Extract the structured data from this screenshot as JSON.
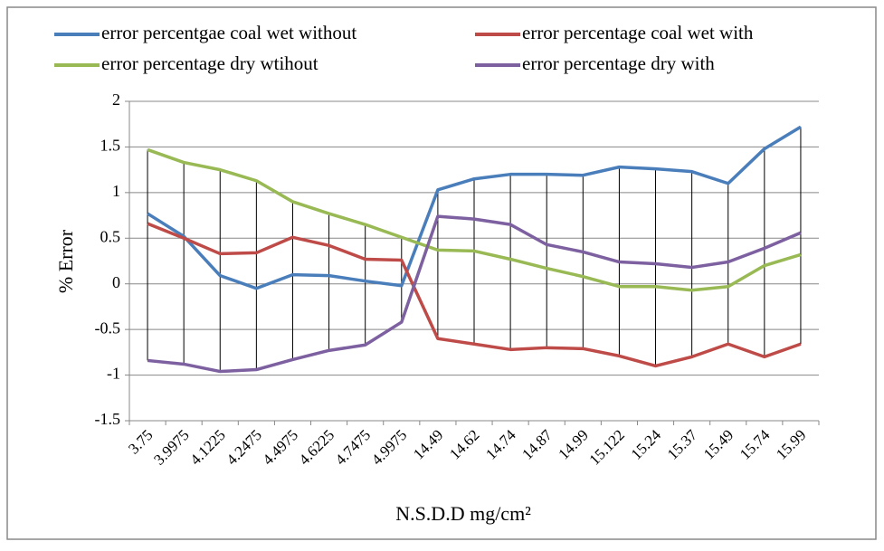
{
  "chart_data": {
    "type": "line",
    "x_label": "N.S.D.D mg/cm²",
    "y_label": "% Error",
    "categories": [
      "3.75",
      "3.9975",
      "4.1225",
      "4.2475",
      "4.4975",
      "4.6225",
      "4.7475",
      "4.9975",
      "14.49",
      "14.62",
      "14.74",
      "14.87",
      "14.99",
      "15.122",
      "15.24",
      "15.37",
      "15.49",
      "15.74",
      "15.99"
    ],
    "series": [
      {
        "name": "error percentgae coal wet without",
        "color": "#4a7ebb",
        "values": [
          0.77,
          0.52,
          0.09,
          -0.05,
          0.1,
          0.09,
          0.03,
          -0.02,
          1.03,
          1.15,
          1.2,
          1.2,
          1.19,
          1.28,
          1.26,
          1.23,
          1.1,
          1.48,
          1.72
        ]
      },
      {
        "name": "error percentage coal wet with",
        "color": "#be4b48",
        "values": [
          0.66,
          0.5,
          0.33,
          0.34,
          0.51,
          0.42,
          0.27,
          0.26,
          -0.6,
          -0.66,
          -0.72,
          -0.7,
          -0.71,
          -0.79,
          -0.9,
          -0.8,
          -0.66,
          -0.8,
          -0.66
        ]
      },
      {
        "name": "error percentage dry wtihout",
        "color": "#98b954",
        "values": [
          1.47,
          1.33,
          1.25,
          1.13,
          0.9,
          0.77,
          0.65,
          0.51,
          0.37,
          0.36,
          0.27,
          0.17,
          0.08,
          -0.03,
          -0.03,
          -0.07,
          -0.03,
          0.2,
          0.32
        ]
      },
      {
        "name": "error percentage dry with",
        "color": "#7d60a0",
        "values": [
          -0.84,
          -0.88,
          -0.96,
          -0.94,
          -0.83,
          -0.73,
          -0.67,
          -0.42,
          0.74,
          0.71,
          0.65,
          0.43,
          0.35,
          0.24,
          0.22,
          0.18,
          0.24,
          0.39,
          0.56
        ]
      }
    ],
    "ylim": [
      -1.5,
      2
    ],
    "yticks": [
      -1.5,
      -1,
      -0.5,
      0,
      0.5,
      1,
      1.5,
      2
    ],
    "grid": true,
    "high_low_lines": true,
    "legend": "top"
  }
}
